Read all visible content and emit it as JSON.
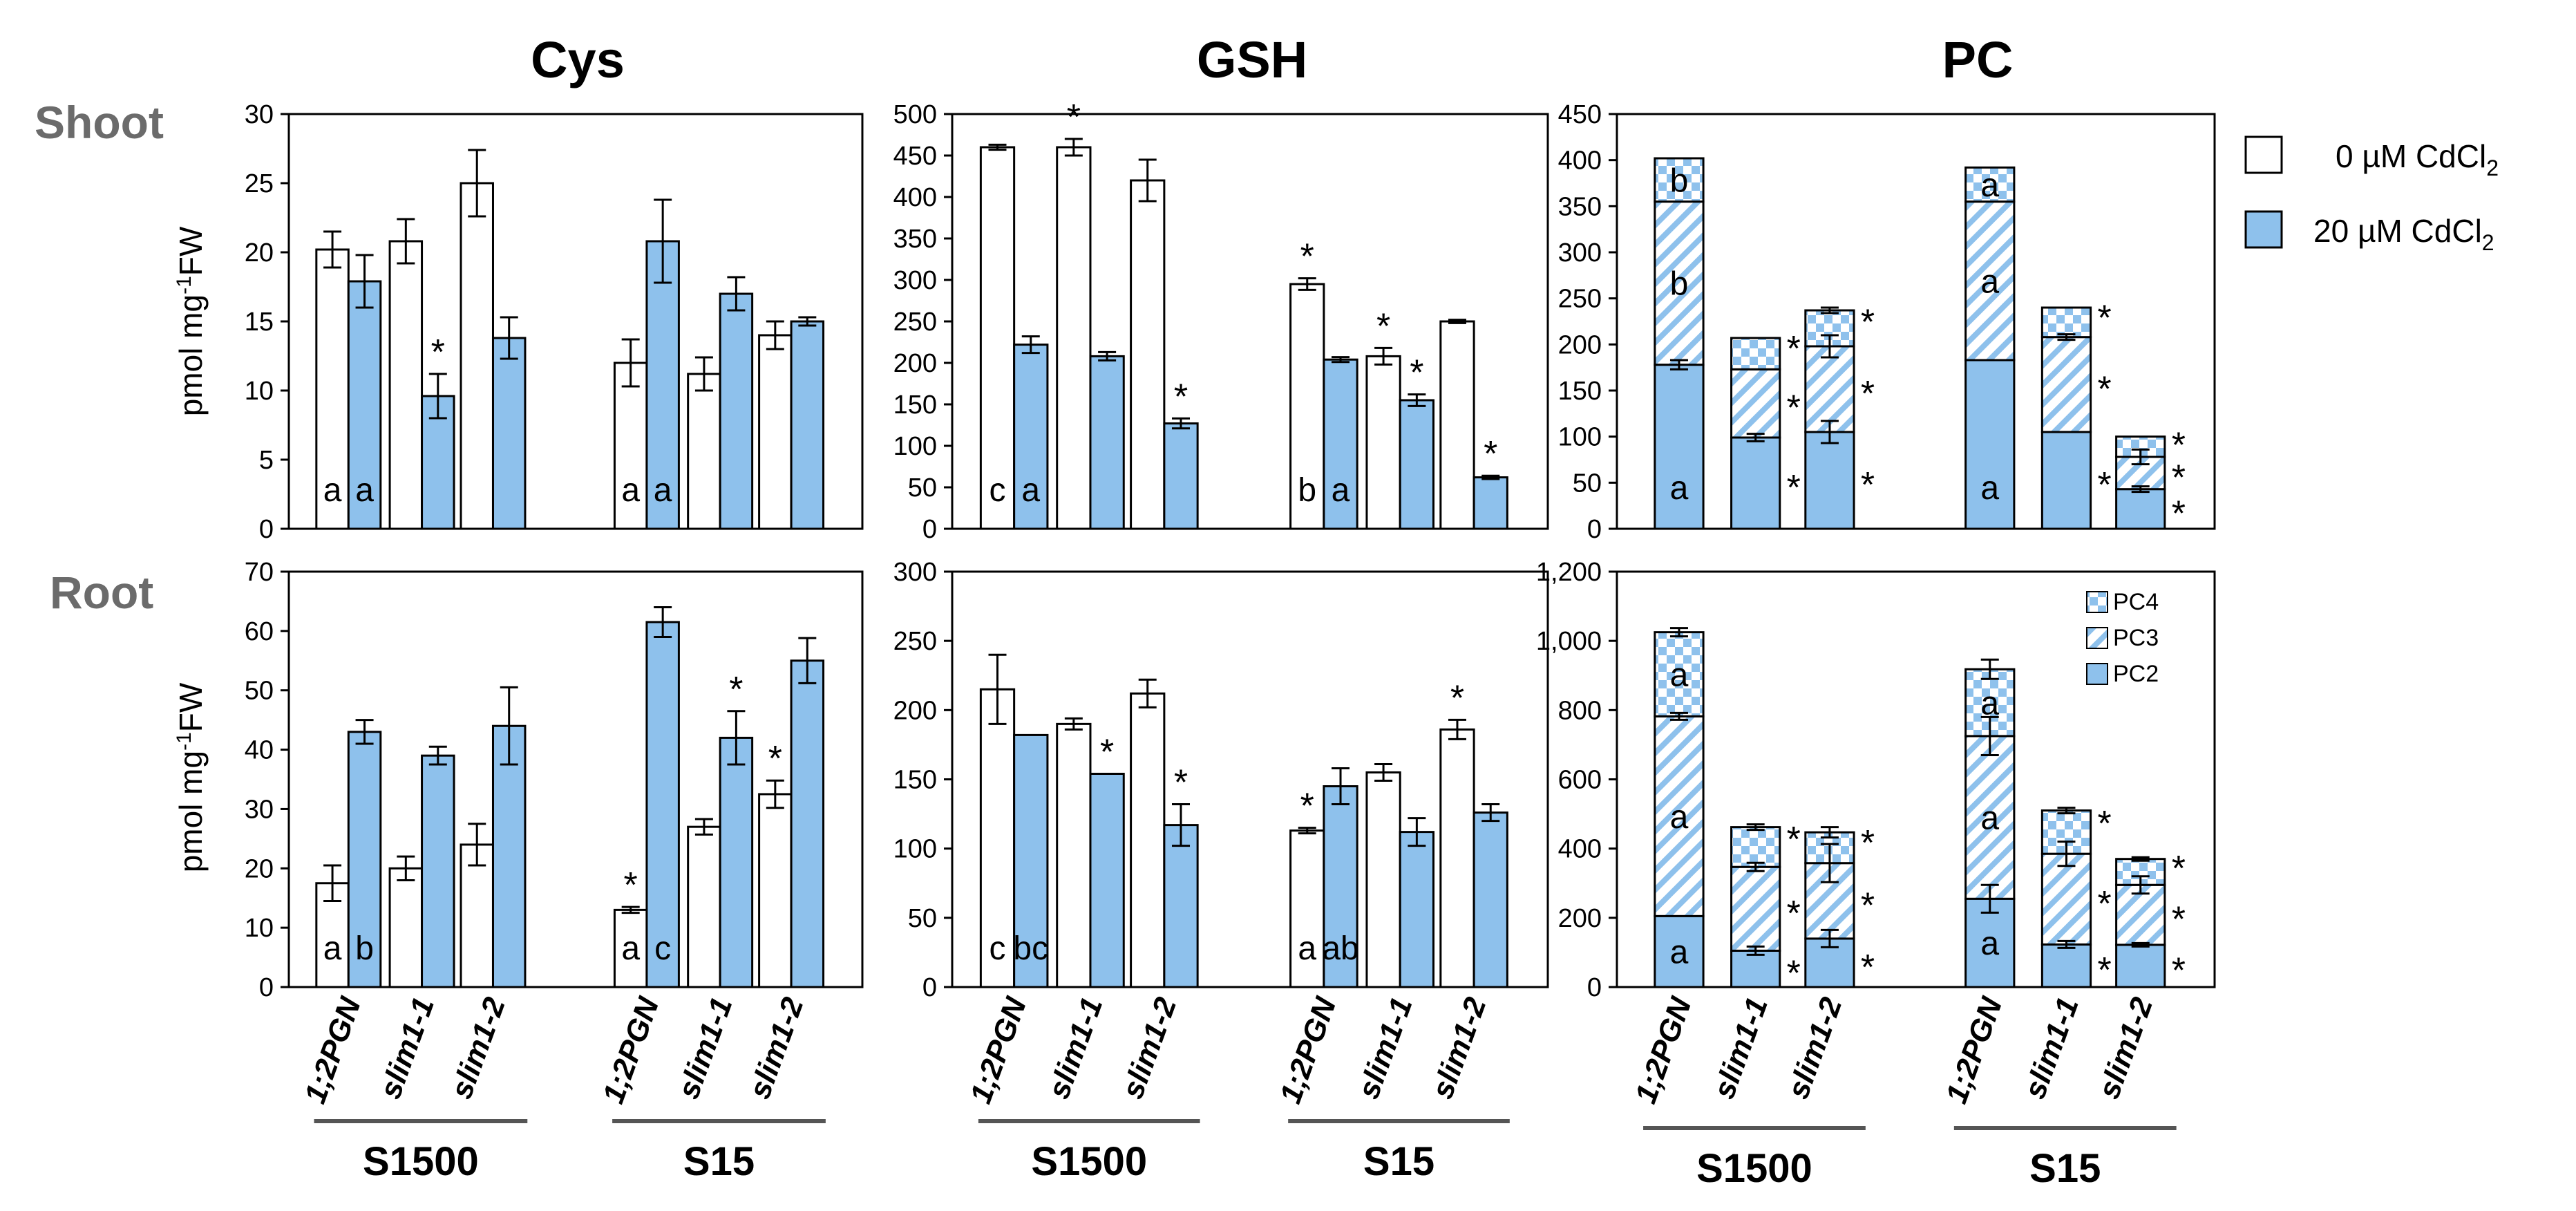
{
  "colors": {
    "white_bar": "#ffffff",
    "blue_bar": "#8ec1ec",
    "hatch": "#8ec1ec",
    "axis": "#000000",
    "group_line": "#555555",
    "row_title": "#6b6b6b"
  },
  "column_titles": [
    "Cys",
    "GSH",
    "PC"
  ],
  "row_titles": [
    "Shoot",
    "Root"
  ],
  "ylabel_main": "pmol mg",
  "ylabel_sup": "-1",
  "ylabel_tail": "FW",
  "legend": {
    "white_label": "0 µM CdCl",
    "blue_label": "20 µM CdCl",
    "sub": "2"
  },
  "pc_legend": [
    "PC4",
    "PC3",
    "PC2"
  ],
  "genotypes": [
    "1;2PGN",
    "slim1-1",
    "slim1-2"
  ],
  "groups": [
    "S1500",
    "S15"
  ],
  "chart_data": [
    {
      "type": "bar",
      "title": "Cys",
      "row": "Shoot",
      "ylim": [
        0,
        30
      ],
      "yticks": [
        "0",
        "5",
        "10",
        "15",
        "20",
        "25",
        "30"
      ],
      "categories": [
        "1;2PGN",
        "slim1-1",
        "slim1-2",
        "1;2PGN",
        "slim1-1",
        "slim1-2"
      ],
      "series": [
        {
          "name": "0 µM CdCl2",
          "values": [
            20.2,
            20.8,
            25.0,
            12.0,
            11.2,
            14.0
          ],
          "errors": [
            1.3,
            1.6,
            2.4,
            1.7,
            1.2,
            1.0
          ]
        },
        {
          "name": "20 µM CdCl2",
          "values": [
            17.9,
            9.6,
            13.8,
            20.8,
            17.0,
            15.0
          ],
          "errors": [
            1.9,
            1.6,
            1.5,
            3.0,
            1.2,
            0.3
          ]
        }
      ],
      "annotations": [
        "a",
        "a",
        "a",
        "a"
      ],
      "stars": [
        "*"
      ]
    },
    {
      "type": "bar",
      "title": "GSH",
      "row": "Shoot",
      "ylim": [
        0,
        500
      ],
      "yticks": [
        "0",
        "50",
        "100",
        "150",
        "200",
        "250",
        "300",
        "350",
        "400",
        "450",
        "500"
      ],
      "categories": [
        "1;2PGN",
        "slim1-1",
        "slim1-2",
        "1;2PGN",
        "slim1-1",
        "slim1-2"
      ],
      "series": [
        {
          "name": "0 µM CdCl2",
          "values": [
            460,
            460,
            420,
            295,
            208,
            250
          ],
          "errors": [
            3,
            10,
            25,
            7,
            10,
            2
          ]
        },
        {
          "name": "20 µM CdCl2",
          "values": [
            222,
            208,
            127,
            204,
            155,
            62
          ],
          "errors": [
            10,
            5,
            6,
            3,
            7,
            2
          ]
        }
      ],
      "annotations": [
        "c",
        "a",
        "b",
        "a"
      ],
      "stars": [
        "*",
        "*",
        "*",
        "*",
        "*",
        "*"
      ]
    },
    {
      "type": "stacked_bar",
      "title": "PC",
      "row": "Shoot",
      "ylim": [
        0,
        450
      ],
      "yticks": [
        "0",
        "50",
        "100",
        "150",
        "200",
        "250",
        "300",
        "350",
        "400",
        "450"
      ],
      "categories": [
        "1;2PGN",
        "slim1-1",
        "slim1-2",
        "1;2PGN",
        "slim1-1",
        "slim1-2"
      ],
      "stack_names": [
        "PC2",
        "PC3",
        "PC4"
      ],
      "totals_pc2": [
        178,
        99,
        105,
        183,
        105,
        43
      ],
      "totals_pc23": [
        355,
        173,
        198,
        355,
        208,
        78
      ],
      "totals_all": [
        402,
        207,
        237,
        392,
        240,
        100
      ],
      "errors": [
        [
          5,
          4,
          12,
          0,
          0,
          3
        ],
        [
          0,
          0,
          12,
          0,
          3,
          8
        ],
        [
          0,
          0,
          3,
          0,
          0,
          0
        ]
      ],
      "annotations": [
        "a",
        "b",
        "b",
        "a",
        "a",
        "a"
      ],
      "stars": [
        "*",
        "*",
        "*",
        "*",
        "*",
        "*",
        "*",
        "*",
        "*",
        "*",
        "*",
        "*"
      ]
    },
    {
      "type": "bar",
      "title": "Cys",
      "row": "Root",
      "ylim": [
        0,
        70
      ],
      "yticks": [
        "0",
        "10",
        "20",
        "30",
        "40",
        "50",
        "60",
        "70"
      ],
      "categories": [
        "1;2PGN",
        "slim1-1",
        "slim1-2",
        "1;2PGN",
        "slim1-1",
        "slim1-2"
      ],
      "series": [
        {
          "name": "0 µM CdCl2",
          "values": [
            17.5,
            20.0,
            24.0,
            13.0,
            27.0,
            32.5
          ],
          "errors": [
            3.0,
            2.0,
            3.5,
            0.5,
            1.3,
            2.3
          ]
        },
        {
          "name": "20 µM CdCl2",
          "values": [
            43.0,
            39.0,
            44.0,
            61.5,
            42.0,
            55.0
          ],
          "errors": [
            2.0,
            1.5,
            6.5,
            2.5,
            4.5,
            3.8
          ]
        }
      ],
      "annotations": [
        "a",
        "b",
        "a",
        "c"
      ],
      "stars": [
        "*",
        "*",
        "*"
      ]
    },
    {
      "type": "bar",
      "title": "GSH",
      "row": "Root",
      "ylim": [
        0,
        300
      ],
      "yticks": [
        "0",
        "50",
        "100",
        "150",
        "200",
        "250",
        "300"
      ],
      "categories": [
        "1;2PGN",
        "slim1-1",
        "slim1-2",
        "1;2PGN",
        "slim1-1",
        "slim1-2"
      ],
      "series": [
        {
          "name": "0 µM CdCl2",
          "values": [
            215,
            190,
            212,
            113,
            155,
            186
          ],
          "errors": [
            25,
            4,
            10,
            2,
            6,
            7
          ]
        },
        {
          "name": "20 µM CdCl2",
          "values": [
            182,
            154,
            117,
            145,
            112,
            126
          ],
          "errors": [
            0,
            0,
            15,
            13,
            10,
            6
          ]
        }
      ],
      "annotations": [
        "c",
        "bc",
        "a",
        "ab"
      ],
      "stars": [
        "*",
        "*",
        "*",
        "*"
      ]
    },
    {
      "type": "stacked_bar",
      "title": "PC",
      "row": "Root",
      "ylim": [
        0,
        1200
      ],
      "yticks": [
        "0",
        "200",
        "400",
        "600",
        "800",
        "1,000",
        "1,200"
      ],
      "categories": [
        "1;2PGN",
        "slim1-1",
        "slim1-2",
        "1;2PGN",
        "slim1-1",
        "slim1-2"
      ],
      "stack_names": [
        "PC2",
        "PC3",
        "PC4"
      ],
      "totals_pc2": [
        205,
        105,
        140,
        255,
        123,
        122
      ],
      "totals_pc23": [
        782,
        347,
        358,
        725,
        385,
        295
      ],
      "totals_all": [
        1025,
        462,
        447,
        918,
        510,
        370
      ],
      "errors": [
        [
          0,
          12,
          25,
          40,
          10,
          5
        ],
        [
          10,
          12,
          55,
          55,
          35,
          25
        ],
        [
          12,
          8,
          15,
          28,
          8,
          5
        ]
      ],
      "annotations": [
        "a",
        "a",
        "a",
        "a",
        "a",
        "a"
      ],
      "stars": [
        "*",
        "*",
        "*",
        "*",
        "*",
        "*",
        "*",
        "*",
        "*",
        "*",
        "*",
        "*"
      ]
    }
  ]
}
